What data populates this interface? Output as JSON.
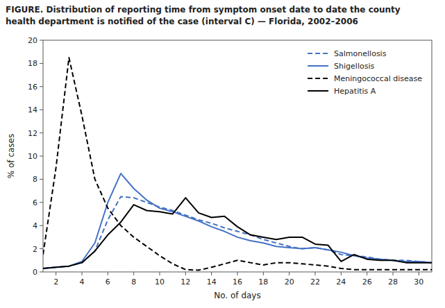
{
  "chart_data": {
    "type": "line",
    "title": "FIGURE. Distribution of reporting time from symptom onset date to date the county",
    "subtitle": "health department is notified of the case (interval C) — Florida, 2002–2006",
    "x_label": "No. of days",
    "y_label": "% of cases",
    "x": [
      1,
      2,
      3,
      4,
      5,
      6,
      7,
      8,
      9,
      10,
      11,
      12,
      13,
      14,
      15,
      16,
      17,
      18,
      19,
      20,
      21,
      22,
      23,
      24,
      25,
      26,
      27,
      28,
      29,
      30,
      31
    ],
    "xlim": [
      1,
      31
    ],
    "ylim": [
      0,
      20
    ],
    "xticks": [
      2,
      4,
      6,
      8,
      10,
      12,
      14,
      16,
      18,
      20,
      22,
      24,
      26,
      28,
      30
    ],
    "yticks": [
      0,
      2,
      4,
      6,
      8,
      10,
      12,
      14,
      16,
      18,
      20
    ],
    "grid": false,
    "legend": "upper right",
    "series": [
      {
        "name": "Salmonellosis",
        "color": "#4472C4",
        "line_style": "dashed",
        "values": [
          0.3,
          0.4,
          0.5,
          0.8,
          1.8,
          4.5,
          6.5,
          6.4,
          6.0,
          5.6,
          5.3,
          4.9,
          4.5,
          4.2,
          3.8,
          3.5,
          3.2,
          2.8,
          2.5,
          2.2,
          2.0,
          2.1,
          1.9,
          1.5,
          1.4,
          1.3,
          1.1,
          1.0,
          1.0,
          0.9,
          0.8
        ]
      },
      {
        "name": "Shigellosis",
        "color": "#4472C4",
        "line_style": "solid",
        "values": [
          0.3,
          0.4,
          0.5,
          0.9,
          2.5,
          6.0,
          8.5,
          7.2,
          6.2,
          5.5,
          5.2,
          4.8,
          4.4,
          3.9,
          3.5,
          3.0,
          2.7,
          2.5,
          2.2,
          2.1,
          2.0,
          2.1,
          1.9,
          1.7,
          1.4,
          1.2,
          1.1,
          1.0,
          0.9,
          0.9,
          0.8
        ]
      },
      {
        "name": "Meningococcal disease",
        "color": "#000000",
        "line_style": "dashed",
        "values": [
          1.5,
          9.0,
          18.5,
          13.5,
          8.0,
          5.5,
          4.0,
          3.0,
          2.2,
          1.4,
          0.7,
          0.2,
          0.15,
          0.4,
          0.7,
          1.0,
          0.8,
          0.6,
          0.8,
          0.8,
          0.7,
          0.6,
          0.5,
          0.3,
          0.2,
          0.2,
          0.2,
          0.2,
          0.2,
          0.2,
          0.2
        ]
      },
      {
        "name": "Hepatitis A",
        "color": "#000000",
        "line_style": "solid",
        "values": [
          0.3,
          0.4,
          0.5,
          0.8,
          1.8,
          3.2,
          4.3,
          5.8,
          5.3,
          5.2,
          5.0,
          6.4,
          5.1,
          4.7,
          4.8,
          3.9,
          3.2,
          3.0,
          2.8,
          3.0,
          3.0,
          2.4,
          2.3,
          0.9,
          1.5,
          1.1,
          1.0,
          1.0,
          0.8,
          0.8,
          0.8
        ]
      }
    ]
  }
}
